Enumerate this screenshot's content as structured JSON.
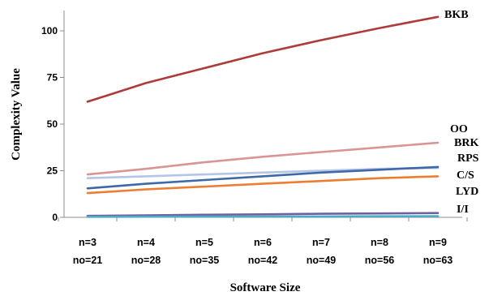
{
  "chart_data": {
    "type": "line",
    "title": "",
    "xlabel": "Software Size",
    "ylabel": "Complexity Value",
    "categories": [
      [
        "n=3",
        "no=21"
      ],
      [
        "n=4",
        "no=28"
      ],
      [
        "n=5",
        "no=35"
      ],
      [
        "n=6",
        "no=42"
      ],
      [
        "n=7",
        "no=49"
      ],
      [
        "n=8",
        "no=56"
      ],
      [
        "n=9",
        "no=63"
      ]
    ],
    "yticks": [
      0,
      25,
      50,
      75,
      100
    ],
    "ylim": [
      0,
      110
    ],
    "grid": false,
    "legend": "labels at right end of each series",
    "series": [
      {
        "name": "BKB",
        "color": "#b03a3a",
        "values": [
          62,
          72,
          80,
          88,
          95,
          101.5,
          107.5
        ]
      },
      {
        "name": "OO",
        "color": "#d99594",
        "values": [
          23,
          26,
          29.5,
          32.5,
          35,
          37.5,
          40
        ]
      },
      {
        "name": "BRK",
        "color": "#b4c6e7",
        "values": [
          21,
          22,
          23,
          24,
          25,
          26,
          26.5
        ]
      },
      {
        "name": "RPS",
        "color": "#3f68a8",
        "values": [
          15.5,
          18,
          20,
          22,
          24,
          25.5,
          27
        ]
      },
      {
        "name": "C/S",
        "color": "#ed7d31",
        "values": [
          13,
          15,
          16.5,
          18,
          19.5,
          21,
          22
        ]
      },
      {
        "name": "LYD",
        "color": "#7060a0",
        "values": [
          0.8,
          1.1,
          1.4,
          1.6,
          1.9,
          2.1,
          2.3
        ]
      },
      {
        "name": "I/I",
        "color": "#4bacc6",
        "values": [
          0.3,
          0.35,
          0.4,
          0.45,
          0.5,
          0.55,
          0.6
        ]
      }
    ]
  }
}
